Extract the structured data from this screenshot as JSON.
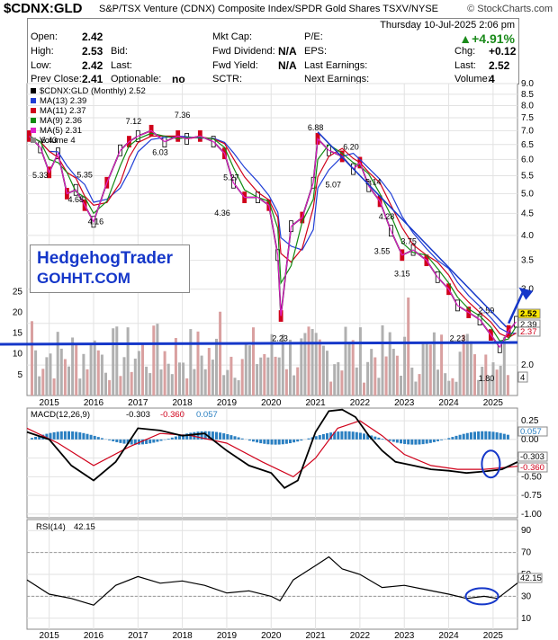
{
  "header": {
    "symbol": "$CDNX:GLD",
    "description": "S&P/TSX Venture (CDNX) Composite Index/SPDR Gold Shares  TSXV/NYSE",
    "brand": "© StockCharts.com",
    "date": "Thursday  10-Jul-2025  2:06 pm",
    "quote": [
      [
        "Open:",
        "2.42"
      ],
      [
        "High:",
        "2.53"
      ],
      [
        "Low:",
        "2.42"
      ],
      [
        "Prev Close:",
        "2.41"
      ]
    ],
    "quote_mid": [
      [
        "Bid:",
        ""
      ],
      [
        "Last:",
        ""
      ],
      [
        "Optionable:",
        "no"
      ]
    ],
    "fund": [
      [
        "Mkt Cap:",
        ""
      ],
      [
        "Fwd Dividend:",
        "N/A"
      ],
      [
        "Fwd Yield:",
        "N/A"
      ],
      [
        "SCTR:",
        ""
      ]
    ],
    "earn": [
      [
        "P/E:",
        ""
      ],
      [
        "EPS:",
        ""
      ],
      [
        "Last Earnings:",
        ""
      ],
      [
        "Next Earnings:",
        ""
      ]
    ],
    "pct_change": "▲+4.91%",
    "stats": [
      [
        "Chg:",
        "+0.12"
      ],
      [
        "Last:",
        "2.52"
      ],
      [
        "Volume:",
        "4"
      ]
    ]
  },
  "watermark": {
    "line1": "HedgehogTrader",
    "line2": "GOHHT.COM"
  },
  "colors": {
    "up": "#000000",
    "down": "#d0021b",
    "ma13": "#1f3dd6",
    "ma11": "#d0021b",
    "ma9": "#128a12",
    "ma5": "#e020c8",
    "macd": "#000000",
    "signal": "#d0021b",
    "hist": "#2a7fc1",
    "rsi": "#000000",
    "annot": "#1537c9",
    "volume": "#b0b0b0"
  },
  "chart_data": [
    {
      "type": "line",
      "title": "$CDNX:GLD (Monthly) 2.52",
      "scale": "log",
      "ylim": [
        1.7,
        9.0
      ],
      "y_ticks": [
        "9.0",
        "8.5",
        "8.0",
        "7.5",
        "7.0",
        "6.5",
        "6.0",
        "5.5",
        "5.0",
        "4.5",
        "4.0",
        "3.5",
        "3.0",
        "2.5",
        "2.0"
      ],
      "volume_ticks": [
        "25",
        "20",
        "15",
        "10",
        "5"
      ],
      "x_ticks": [
        "2015",
        "2016",
        "2017",
        "2018",
        "2019",
        "2020",
        "2021",
        "2022",
        "2023",
        "2024",
        "2025"
      ],
      "x_start": 2014.5,
      "x_end": 2025.55,
      "legend": [
        "$CDNX:GLD (Monthly) 2.52",
        "MA(13) 2.39",
        "MA(11) 2.37",
        "MA(9) 2.36",
        "MA(5) 2.31",
        "Volume 4"
      ],
      "series": [
        {
          "name": "$CDNX:GLD",
          "x": [
            2014.55,
            2014.8,
            2015.0,
            2015.2,
            2015.4,
            2015.6,
            2015.8,
            2016.0,
            2016.3,
            2016.6,
            2016.8,
            2017.0,
            2017.3,
            2017.6,
            2017.9,
            2018.1,
            2018.4,
            2018.7,
            2018.95,
            2019.15,
            2019.4,
            2019.7,
            2019.95,
            2020.15,
            2020.22,
            2020.45,
            2020.7,
            2020.95,
            2021.05,
            2021.3,
            2021.6,
            2021.85,
            2022.0,
            2022.2,
            2022.45,
            2022.7,
            2022.95,
            2023.2,
            2023.5,
            2023.75,
            2024.0,
            2024.2,
            2024.45,
            2024.7,
            2024.95,
            2025.15,
            2025.35,
            2025.52
          ],
          "y": [
            6.8,
            6.4,
            5.6,
            6.2,
            5.0,
            5.1,
            4.7,
            4.3,
            5.3,
            6.3,
            6.6,
            6.8,
            7.0,
            6.6,
            6.8,
            6.7,
            6.8,
            6.6,
            6.2,
            5.3,
            4.9,
            4.9,
            4.7,
            3.6,
            2.6,
            4.2,
            4.4,
            5.3,
            6.7,
            6.3,
            6.1,
            5.7,
            5.9,
            5.2,
            4.8,
            4.1,
            3.6,
            3.7,
            3.5,
            3.2,
            3.0,
            2.75,
            2.65,
            2.55,
            2.35,
            2.2,
            2.4,
            2.52
          ]
        },
        {
          "name": "MA(13)",
          "values": [
            2.39
          ]
        },
        {
          "name": "MA(11)",
          "values": [
            2.37
          ]
        },
        {
          "name": "MA(9)",
          "values": [
            2.36
          ]
        },
        {
          "name": "MA(5)",
          "values": [
            2.31
          ]
        }
      ],
      "annotations": [
        {
          "text": "6.43",
          "x": 2015.0,
          "y": 6.43
        },
        {
          "text": "5.33",
          "x": 2014.8,
          "y": 5.33
        },
        {
          "text": "5.35",
          "x": 2015.8,
          "y": 5.35
        },
        {
          "text": "4.68",
          "x": 2015.6,
          "y": 4.68
        },
        {
          "text": "4.16",
          "x": 2016.05,
          "y": 4.16
        },
        {
          "text": "7.12",
          "x": 2016.9,
          "y": 7.12
        },
        {
          "text": "6.03",
          "x": 2017.5,
          "y": 6.03
        },
        {
          "text": "7.36",
          "x": 2018.0,
          "y": 7.36
        },
        {
          "text": "5.27",
          "x": 2019.1,
          "y": 5.27
        },
        {
          "text": "4.36",
          "x": 2018.9,
          "y": 4.36
        },
        {
          "text": "2.23",
          "x": 2020.2,
          "y": 2.23
        },
        {
          "text": "6.88",
          "x": 2021.0,
          "y": 6.88
        },
        {
          "text": "6.20",
          "x": 2021.8,
          "y": 6.2
        },
        {
          "text": "5.07",
          "x": 2021.4,
          "y": 5.07
        },
        {
          "text": "5.14",
          "x": 2022.3,
          "y": 5.14
        },
        {
          "text": "4.28",
          "x": 2022.6,
          "y": 4.28
        },
        {
          "text": "3.75",
          "x": 2023.1,
          "y": 3.75
        },
        {
          "text": "3.55",
          "x": 2022.5,
          "y": 3.55
        },
        {
          "text": "3.15",
          "x": 2022.95,
          "y": 3.15
        },
        {
          "text": "2.59",
          "x": 2024.85,
          "y": 2.59
        },
        {
          "text": "2.23",
          "x": 2024.2,
          "y": 2.23
        },
        {
          "text": "1.80",
          "x": 2024.85,
          "y": 1.8
        }
      ],
      "price_tags": [
        "2.52",
        "2.39",
        "2.37"
      ],
      "volume_tag": "4"
    },
    {
      "type": "line",
      "title": "MACD(12,26,9)",
      "values_label": [
        "-0.303",
        "-0.360",
        "0.057"
      ],
      "ylim": [
        -1.05,
        0.42
      ],
      "y_ticks": [
        "0.25",
        "0.00",
        "-0.25",
        "-0.50",
        "-0.75",
        "-1.00"
      ],
      "x_ticks": [
        "2015",
        "2016",
        "2017",
        "2018",
        "2019",
        "2020",
        "2021",
        "2022",
        "2023",
        "2024",
        "2025"
      ],
      "series": [
        {
          "name": "MACD",
          "x": [
            2014.5,
            2015.0,
            2015.5,
            2016.0,
            2016.5,
            2017.0,
            2017.5,
            2018.0,
            2018.5,
            2019.0,
            2019.5,
            2020.0,
            2020.3,
            2020.6,
            2021.0,
            2021.3,
            2021.6,
            2021.9,
            2022.2,
            2022.5,
            2022.8,
            2023.2,
            2023.6,
            2024.0,
            2024.4,
            2024.8,
            2025.2,
            2025.55
          ],
          "y": [
            0.1,
            0.0,
            -0.35,
            -0.55,
            -0.3,
            0.15,
            0.12,
            0.05,
            0.08,
            -0.15,
            -0.35,
            -0.45,
            -0.65,
            -0.55,
            0.1,
            0.38,
            0.4,
            0.3,
            0.05,
            -0.15,
            -0.3,
            -0.35,
            -0.4,
            -0.42,
            -0.45,
            -0.43,
            -0.4,
            -0.303
          ]
        },
        {
          "name": "Signal",
          "x": [
            2014.5,
            2015.2,
            2016.0,
            2016.8,
            2017.5,
            2018.2,
            2019.0,
            2019.8,
            2020.5,
            2021.0,
            2021.5,
            2022.0,
            2022.5,
            2023.0,
            2023.6,
            2024.2,
            2024.8,
            2025.2,
            2025.55
          ],
          "y": [
            0.15,
            -0.05,
            -0.35,
            -0.1,
            0.08,
            0.05,
            -0.05,
            -0.3,
            -0.5,
            -0.25,
            0.15,
            0.25,
            0.05,
            -0.2,
            -0.35,
            -0.4,
            -0.4,
            -0.38,
            -0.36
          ]
        },
        {
          "name": "Histogram",
          "values": [
            0.057
          ]
        }
      ],
      "tags": [
        "0.057",
        "-0.303",
        "-0.360"
      ]
    },
    {
      "type": "line",
      "title": "RSI(14)",
      "value_label": "42.15",
      "ylim": [
        0,
        100
      ],
      "y_ticks": [
        "90",
        "70",
        "50",
        "30",
        "10"
      ],
      "reference_lines": [
        30,
        70
      ],
      "x_ticks": [
        "2015",
        "2016",
        "2017",
        "2018",
        "2019",
        "2020",
        "2021",
        "2022",
        "2023",
        "2024",
        "2025"
      ],
      "series": [
        {
          "name": "RSI",
          "x": [
            2014.5,
            2015.0,
            2015.5,
            2016.0,
            2016.5,
            2017.0,
            2017.5,
            2018.0,
            2018.5,
            2019.0,
            2019.5,
            2020.0,
            2020.2,
            2020.5,
            2021.0,
            2021.3,
            2021.6,
            2022.0,
            2022.5,
            2023.0,
            2023.5,
            2024.0,
            2024.4,
            2024.8,
            2025.1,
            2025.55
          ],
          "y": [
            45,
            32,
            28,
            22,
            40,
            48,
            42,
            44,
            40,
            33,
            35,
            30,
            26,
            45,
            58,
            66,
            55,
            50,
            38,
            40,
            36,
            32,
            28,
            30,
            28,
            42.15
          ]
        }
      ],
      "tags": [
        "42.15"
      ]
    }
  ]
}
